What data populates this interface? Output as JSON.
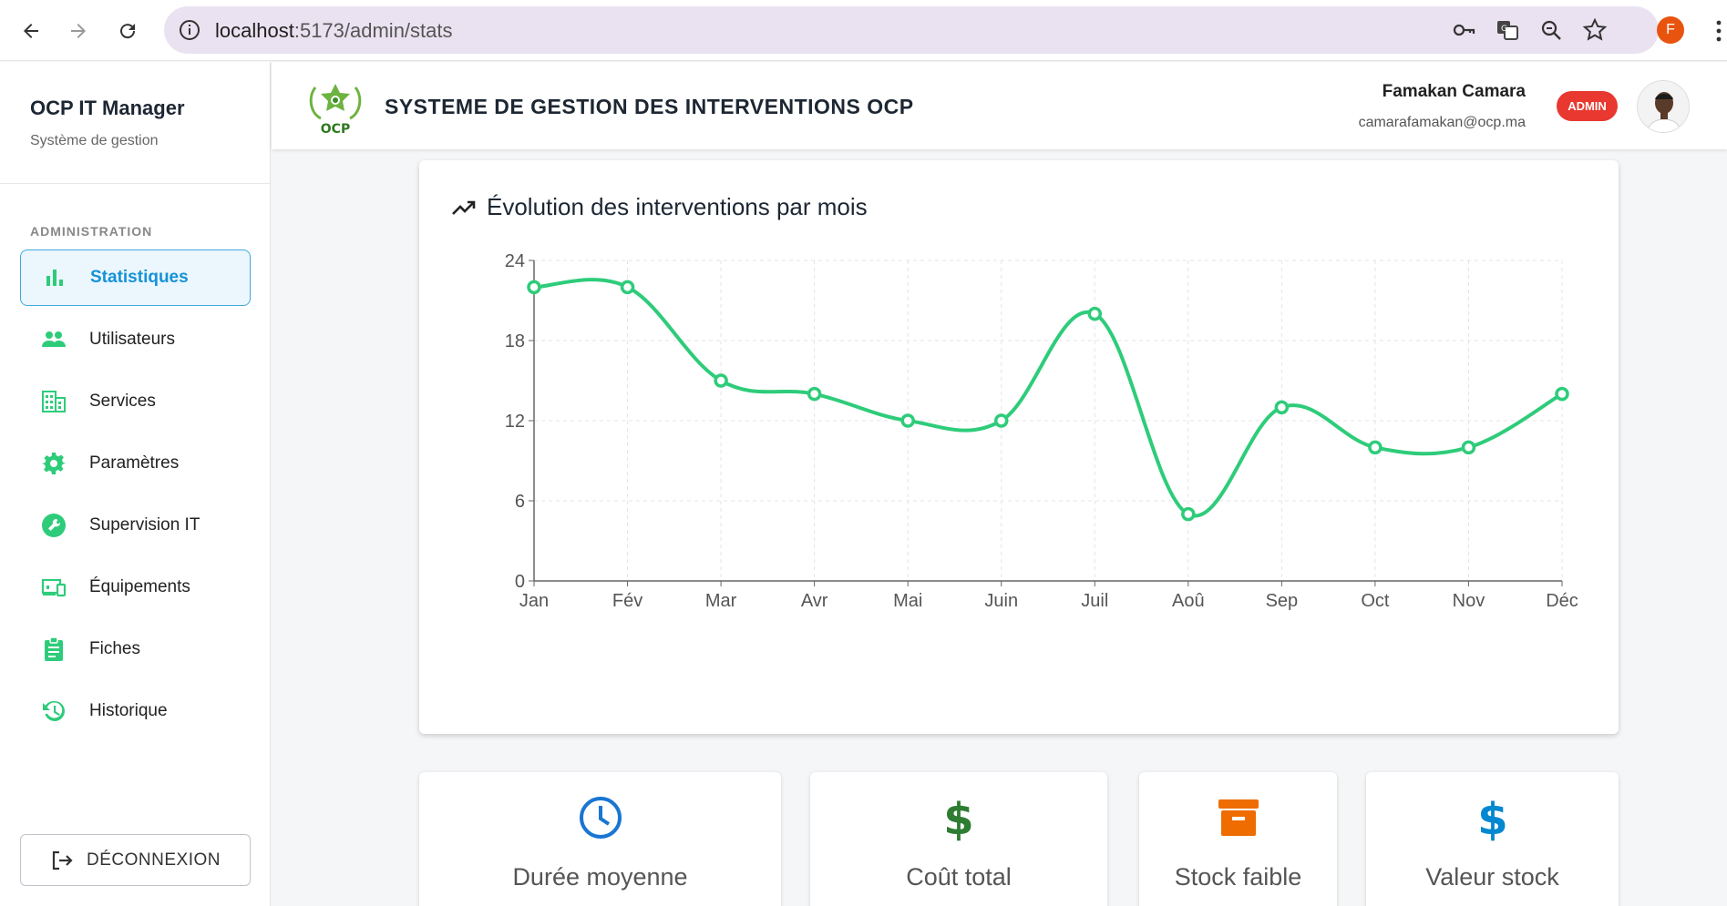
{
  "browser": {
    "url_host": "localhost",
    "url_path": ":5173/admin/stats",
    "profile_initial": "F"
  },
  "sidebar": {
    "title": "OCP IT Manager",
    "subtitle": "Système de gestion",
    "section_label": "ADMINISTRATION",
    "items": [
      {
        "label": "Statistiques",
        "icon": "bar-chart-icon",
        "active": true
      },
      {
        "label": "Utilisateurs",
        "icon": "users-icon",
        "active": false
      },
      {
        "label": "Services",
        "icon": "building-icon",
        "active": false
      },
      {
        "label": "Paramètres",
        "icon": "gear-icon",
        "active": false
      },
      {
        "label": "Supervision IT",
        "icon": "wrench-icon",
        "active": false
      },
      {
        "label": "Équipements",
        "icon": "devices-icon",
        "active": false
      },
      {
        "label": "Fiches",
        "icon": "clipboard-icon",
        "active": false
      },
      {
        "label": "Historique",
        "icon": "history-icon",
        "active": false
      }
    ],
    "logout_label": "DÉCONNEXION"
  },
  "header": {
    "logo_text": "OCP",
    "title": "SYSTEME DE GESTION DES INTERVENTIONS OCP",
    "user_name": "Famakan Camara",
    "user_email": "camarafamakan@ocp.ma",
    "role_badge": "ADMIN"
  },
  "chart_card": {
    "title": "Évolution des interventions par mois"
  },
  "chart_data": {
    "type": "line",
    "title": "Évolution des interventions par mois",
    "categories": [
      "Jan",
      "Fév",
      "Mar",
      "Avr",
      "Mai",
      "Juin",
      "Juil",
      "Aoû",
      "Sep",
      "Oct",
      "Nov",
      "Déc"
    ],
    "series": [
      {
        "values": [
          22,
          22,
          15,
          14,
          12,
          12,
          20,
          5,
          13,
          10,
          10,
          14
        ]
      }
    ],
    "yticks": [
      0,
      6,
      12,
      18,
      24
    ],
    "ylim": [
      0,
      24
    ],
    "xlabel": "",
    "ylabel": "",
    "grid": true,
    "line_color": "#2ecc7a"
  },
  "stats": [
    {
      "label": "Durée moyenne",
      "icon": "clock-icon",
      "color": "#1976d2"
    },
    {
      "label": "Coût total",
      "icon": "dollar-icon",
      "color": "#2e7d32"
    },
    {
      "label": "Stock faible",
      "icon": "archive-icon",
      "color": "#ef6c00"
    },
    {
      "label": "Valeur stock",
      "icon": "dollar-icon",
      "color": "#0288d1"
    }
  ],
  "colors": {
    "accent": "#1592d6",
    "icon_green": "#2ecc7a",
    "badge_red": "#e8382f"
  }
}
